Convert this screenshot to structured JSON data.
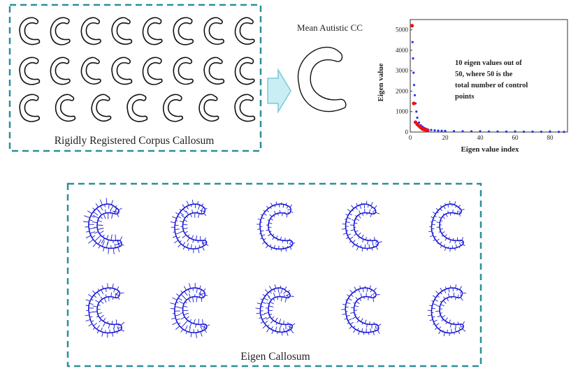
{
  "colors": {
    "box_border": "#2a8f9a",
    "arrow_fill": "#c9eef4",
    "arrow_stroke": "#7cc9d6",
    "shape_stroke": "#111111",
    "eigen_stroke": "#1a1ad6",
    "plot_red": "#ee1111",
    "plot_blue": "#2233ee"
  },
  "registered_panel": {
    "title": "Rigidly Registered Corpus Callosum",
    "rows": [
      8,
      8,
      7
    ]
  },
  "mean_panel": {
    "title": "Mean Autistic CC"
  },
  "arrow": {
    "icon": "right-arrow-icon"
  },
  "chart_data": {
    "type": "scatter",
    "xlabel": "Eigen value index",
    "ylabel": "Eigen value",
    "xlim": [
      0,
      90
    ],
    "ylim": [
      0,
      5500
    ],
    "xticks": [
      "0",
      "20",
      "40",
      "60",
      "80"
    ],
    "yticks": [
      "0",
      "1000",
      "2000",
      "3000",
      "4000",
      "5000"
    ],
    "annotation": "10 eigen values out of 50, where 50 is the total number of control points",
    "series": [
      {
        "color": "red",
        "points": [
          [
            1,
            5200
          ],
          [
            2,
            1400
          ],
          [
            3,
            480
          ],
          [
            4,
            380
          ],
          [
            5,
            300
          ],
          [
            6,
            220
          ],
          [
            7,
            150
          ],
          [
            8,
            120
          ],
          [
            9,
            100
          ],
          [
            10,
            80
          ]
        ]
      },
      {
        "color": "blue",
        "points": [
          [
            1,
            5200
          ],
          [
            1.3,
            4400
          ],
          [
            1.6,
            3600
          ],
          [
            1.9,
            2900
          ],
          [
            2.2,
            2300
          ],
          [
            2.6,
            1800
          ],
          [
            3,
            1400
          ],
          [
            3.5,
            1000
          ],
          [
            4,
            700
          ],
          [
            5,
            460
          ],
          [
            6,
            330
          ],
          [
            7,
            260
          ],
          [
            8,
            200
          ],
          [
            9,
            160
          ],
          [
            10,
            130
          ],
          [
            12,
            100
          ],
          [
            14,
            80
          ],
          [
            16,
            70
          ],
          [
            18,
            60
          ],
          [
            20,
            55
          ],
          [
            25,
            45
          ],
          [
            30,
            40
          ],
          [
            35,
            35
          ],
          [
            40,
            30
          ],
          [
            45,
            28
          ],
          [
            50,
            25
          ],
          [
            55,
            22
          ],
          [
            60,
            20
          ],
          [
            65,
            18
          ],
          [
            70,
            16
          ],
          [
            75,
            14
          ],
          [
            80,
            12
          ],
          [
            85,
            10
          ],
          [
            88,
            8
          ]
        ]
      }
    ]
  },
  "eigen_panel": {
    "title": "Eigen Callosum",
    "rows": [
      5,
      5
    ]
  }
}
